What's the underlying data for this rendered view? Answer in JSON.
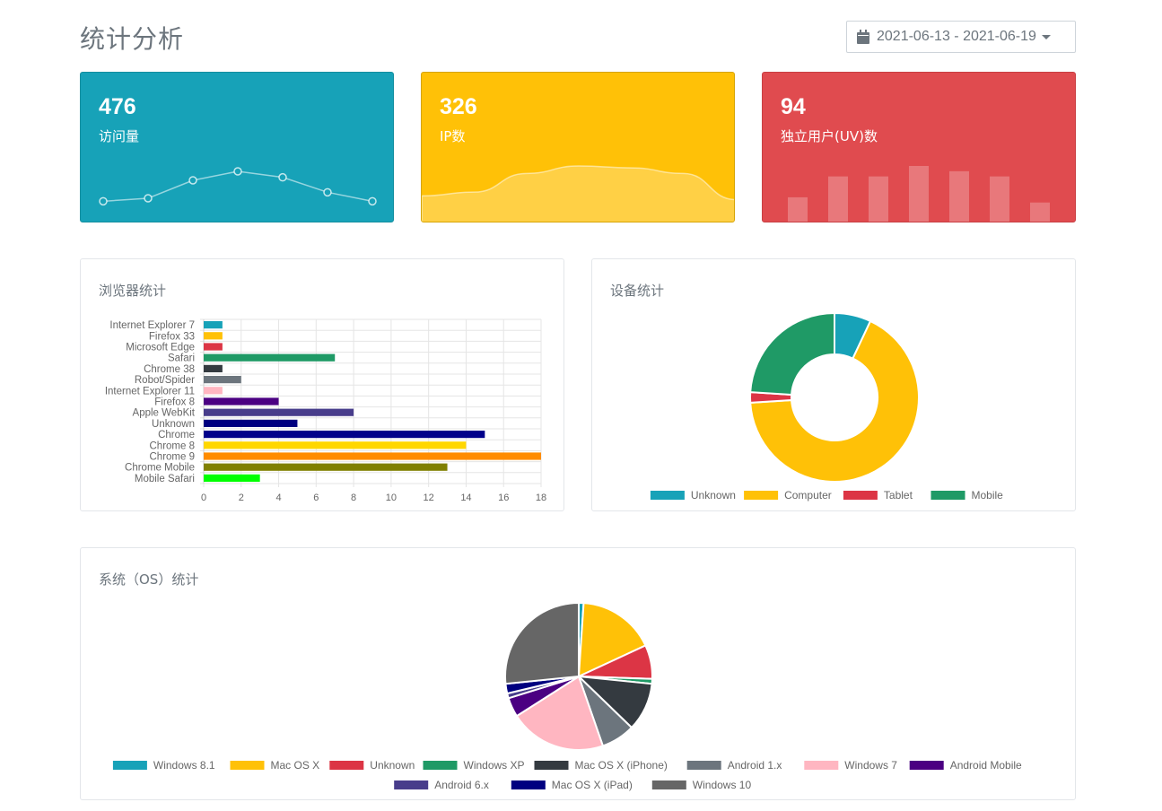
{
  "page": {
    "title": "统计分析"
  },
  "date_range": {
    "label": "2021-06-13 - 2021-06-19"
  },
  "stats": [
    {
      "value": "476",
      "label": "访问量",
      "color": "#17a2b8",
      "spark": [
        2,
        3,
        9,
        12,
        10,
        5,
        2
      ]
    },
    {
      "value": "326",
      "label": "IP数",
      "color": "#ffc107",
      "spark": [
        8,
        10,
        20,
        24,
        23,
        20,
        6
      ]
    },
    {
      "value": "94",
      "label": "独立用户(UV)数",
      "color": "#e04b4f",
      "spark": [
        5,
        9,
        9,
        11,
        10,
        9,
        4
      ]
    }
  ],
  "panels": {
    "browser_title": "浏览器统计",
    "device_title": "设备统计",
    "os_title": "系统（OS）统计"
  },
  "chart_data": [
    {
      "type": "bar",
      "orientation": "horizontal",
      "categories": [
        "Internet Explorer 7",
        "Firefox 33",
        "Microsoft Edge",
        "Safari",
        "Chrome 38",
        "Robot/Spider",
        "Internet Explorer 11",
        "Firefox 8",
        "Apple WebKit",
        "Unknown",
        "Chrome",
        "Chrome 8",
        "Chrome 9",
        "Chrome Mobile",
        "Mobile Safari"
      ],
      "values": [
        1,
        1,
        1,
        7,
        1,
        2,
        1,
        4,
        8,
        5,
        15,
        14,
        18,
        13,
        3
      ],
      "colors": [
        "#17a2b8",
        "#ffc107",
        "#dc3545",
        "#1f9a66",
        "#343a40",
        "#6c757d",
        "#ffb6c1",
        "#4b0082",
        "#483d8b",
        "#000080",
        "#00008b",
        "#ffd700",
        "#ff8c00",
        "#808000",
        "#00ff00"
      ],
      "xlim": [
        0,
        18
      ],
      "xticks": [
        0,
        2,
        4,
        6,
        8,
        10,
        12,
        14,
        16,
        18
      ],
      "grid": true
    },
    {
      "type": "pie",
      "donut": true,
      "categories": [
        "Unknown",
        "Computer",
        "Tablet",
        "Mobile"
      ],
      "values": [
        7,
        67,
        2,
        24
      ],
      "colors": [
        "#17a2b8",
        "#ffc107",
        "#dc3545",
        "#1f9a66"
      ],
      "legend": "bottom"
    },
    {
      "type": "pie",
      "categories": [
        "Windows 8.1",
        "Mac OS X",
        "Unknown",
        "Windows XP",
        "Mac OS X (iPhone)",
        "Android 1.x",
        "Windows 7",
        "Android Mobile",
        "Android 6.x",
        "Mac OS X (iPad)",
        "Windows 10"
      ],
      "values": [
        1,
        16,
        7,
        1,
        10,
        7,
        20,
        4,
        1,
        2,
        25
      ],
      "colors": [
        "#17a2b8",
        "#ffc107",
        "#dc3545",
        "#1f9a66",
        "#343a40",
        "#6c757d",
        "#ffb6c1",
        "#4b0082",
        "#483d8b",
        "#000080",
        "#666666"
      ],
      "legend": "bottom"
    }
  ]
}
